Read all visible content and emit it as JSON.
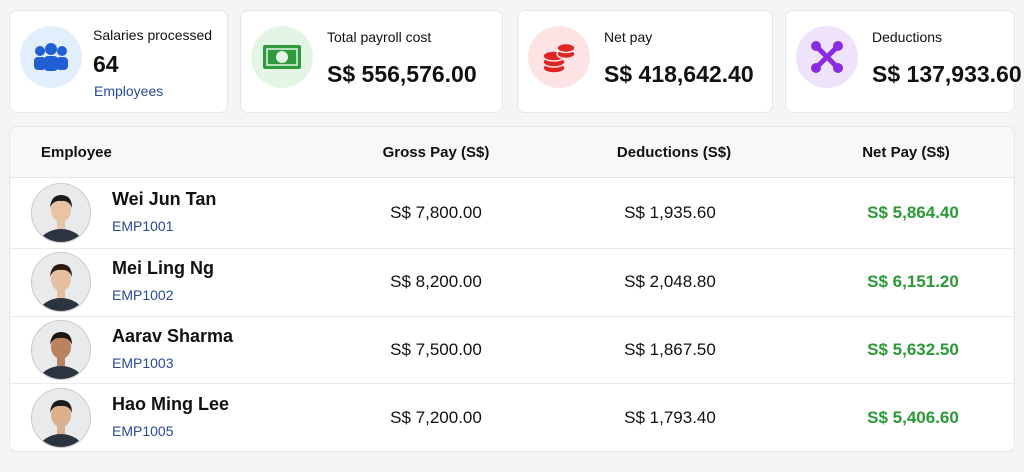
{
  "summary_cards": [
    {
      "label": "Salaries processed",
      "value": "64",
      "sublabel": "Employees"
    },
    {
      "label": "Total payroll cost",
      "value": "S$ 556,576.00"
    },
    {
      "label": "Net pay",
      "value": "S$ 418,642.40"
    },
    {
      "label": "Deductions",
      "value": "S$ 137,933.60"
    }
  ],
  "table": {
    "columns": [
      "Employee",
      "Gross Pay (S$)",
      "Deductions (S$)",
      "Net Pay (S$)"
    ],
    "rows": [
      {
        "name": "Wei Jun Tan",
        "id": "EMP1001",
        "gross": "S$ 7,800.00",
        "deductions": "S$ 1,935.60",
        "net": "S$ 5,864.40"
      },
      {
        "name": "Mei Ling Ng",
        "id": "EMP1002",
        "gross": "S$ 8,200.00",
        "deductions": "S$ 2,048.80",
        "net": "S$ 6,151.20"
      },
      {
        "name": "Aarav Sharma",
        "id": "EMP1003",
        "gross": "S$ 7,500.00",
        "deductions": "S$ 1,867.50",
        "net": "S$ 5,632.50"
      },
      {
        "name": "Hao Ming Lee",
        "id": "EMP1005",
        "gross": "S$ 7,200.00",
        "deductions": "S$ 1,793.40",
        "net": "S$ 5,406.60"
      }
    ]
  }
}
